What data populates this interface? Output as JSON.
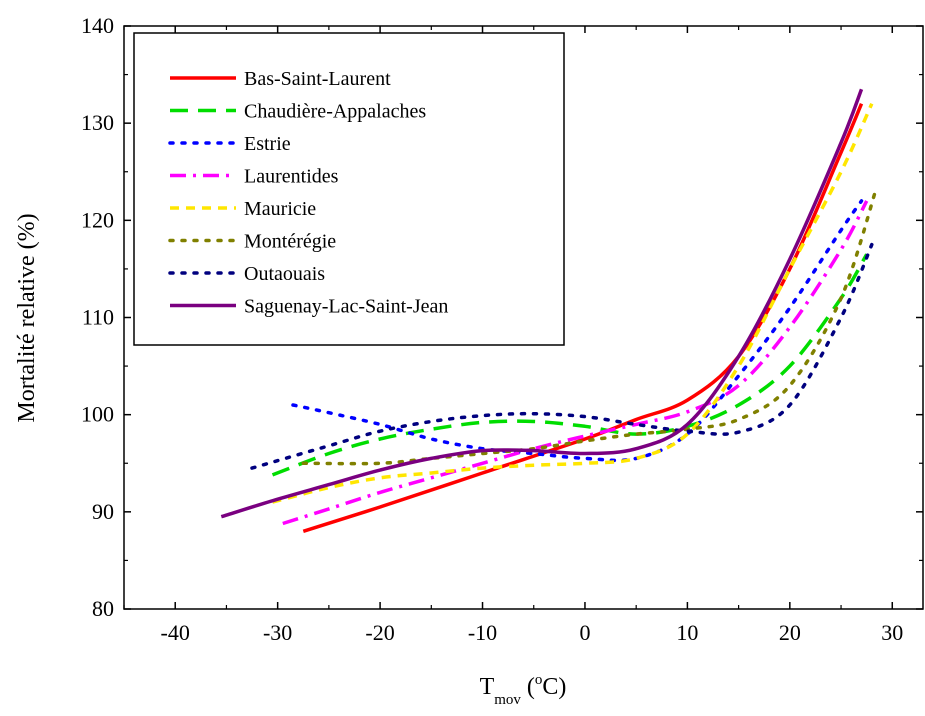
{
  "chart_data": {
    "type": "line",
    "title": "",
    "ylabel": "Mortalité relative (%)",
    "xlabel": {
      "main": "T",
      "subscript": "mov",
      "open": " (",
      "sup": "o",
      "unit": "C)"
    },
    "xlim": [
      -45,
      33
    ],
    "ylim": [
      80,
      140
    ],
    "xticks": [
      "-40",
      "-30",
      "-20",
      "-10",
      "0",
      "10",
      "20",
      "30"
    ],
    "yticks": [
      "80",
      "90",
      "100",
      "110",
      "120",
      "130",
      "140"
    ],
    "grid": false,
    "legend_position": "top-left",
    "series": [
      {
        "name": "Bas-Saint-Laurent",
        "color": "#ff0000",
        "style": "solid",
        "x": [
          -27.5,
          -20,
          -10,
          0,
          5,
          10,
          15,
          20,
          25,
          27
        ],
        "y": [
          88,
          90.5,
          94,
          97.5,
          99.5,
          101.5,
          106,
          115,
          127,
          132
        ]
      },
      {
        "name": "Chaudière-Appalaches",
        "color": "#00dd00",
        "style": "dash",
        "x": [
          -30.5,
          -25,
          -20,
          -15,
          -10,
          -5,
          0,
          5,
          10,
          15,
          20,
          25,
          27.5
        ],
        "y": [
          93.8,
          96,
          97.5,
          98.5,
          99.2,
          99.3,
          98.8,
          98,
          98.8,
          101,
          105,
          112,
          116.5
        ]
      },
      {
        "name": "Estrie",
        "color": "#0000ff",
        "style": "dot",
        "x": [
          -28.5,
          -25,
          -20,
          -15,
          -10,
          -5,
          0,
          5,
          10,
          15,
          20,
          25,
          27
        ],
        "y": [
          101,
          100.2,
          99,
          97.5,
          96.5,
          96,
          95.5,
          95.5,
          98,
          104,
          111,
          119,
          122
        ]
      },
      {
        "name": "Laurentides",
        "color": "#ff00ff",
        "style": "dashdot",
        "x": [
          -29.5,
          -25,
          -20,
          -15,
          -10,
          -5,
          0,
          5,
          10,
          15,
          20,
          25,
          27.5
        ],
        "y": [
          88.8,
          90.3,
          92,
          93.5,
          95,
          96.5,
          97.8,
          99,
          100.3,
          103,
          109,
          117,
          122
        ]
      },
      {
        "name": "Mauricie",
        "color": "#ffe600",
        "style": "shortdash",
        "x": [
          -30.5,
          -25,
          -20,
          -15,
          -10,
          -5,
          0,
          5,
          10,
          15,
          20,
          25,
          28
        ],
        "y": [
          91,
          92.5,
          93.5,
          94,
          94.5,
          94.8,
          95,
          95.5,
          98,
          105,
          115,
          125,
          132
        ]
      },
      {
        "name": "Montérégie",
        "color": "#808000",
        "style": "dot",
        "x": [
          -27.5,
          -20,
          -15,
          -10,
          -5,
          0,
          5,
          10,
          15,
          20,
          25,
          28.5
        ],
        "y": [
          95,
          95,
          95.5,
          96,
          96.5,
          97.3,
          98,
          98.5,
          99.5,
          103,
          112,
          123.5
        ]
      },
      {
        "name": "Outaouais",
        "color": "#00007f",
        "style": "dot",
        "x": [
          -32.5,
          -25,
          -20,
          -15,
          -10,
          -5,
          0,
          5,
          10,
          15,
          20,
          25,
          28
        ],
        "y": [
          94.5,
          96.8,
          98.3,
          99.3,
          99.9,
          100.1,
          99.8,
          99,
          98.3,
          98.2,
          101,
          110,
          117.5
        ]
      },
      {
        "name": "Saguenay-Lac-Saint-Jean",
        "color": "#7a0080",
        "style": "solid",
        "x": [
          -35.5,
          -30,
          -25,
          -20,
          -15,
          -10,
          -5,
          0,
          5,
          10,
          15,
          20,
          25,
          27
        ],
        "y": [
          89.5,
          91.3,
          92.8,
          94.3,
          95.5,
          96.3,
          96.3,
          96,
          96.5,
          99,
          106,
          116,
          128,
          133.5
        ]
      }
    ]
  }
}
